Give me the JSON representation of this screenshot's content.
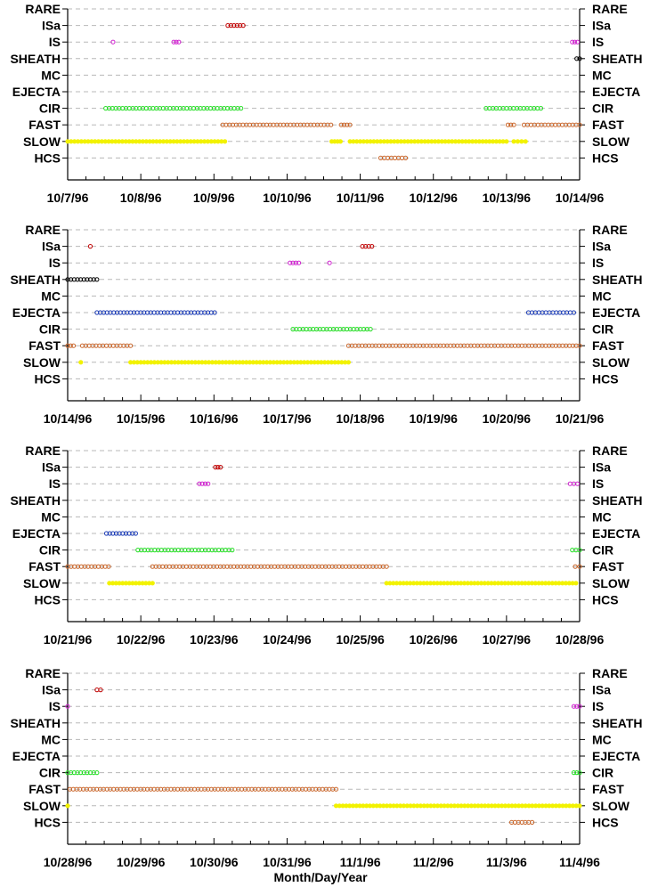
{
  "chart_data": {
    "type": "scatter",
    "categories": [
      "RARE",
      "ISa",
      "IS",
      "SHEATH",
      "MC",
      "EJECTA",
      "CIR",
      "FAST",
      "SLOW",
      "HCS"
    ],
    "xlabel": "Month/Day/Year",
    "grid": "dashed horizontal lines at each category",
    "series_colors": {
      "RARE": "#000000",
      "ISa": "#c00000",
      "IS": "#d020d0",
      "SHEATH": "#000000",
      "MC": "#000000",
      "EJECTA": "#1f3fb8",
      "CIR": "#22dd22",
      "FAST": "#c86428",
      "SLOW": "#f2f200",
      "HCS": "#c86428"
    },
    "panels": [
      {
        "x_tick_labels": [
          "10/7/96",
          "10/8/96",
          "10/9/96",
          "10/10/96",
          "10/11/96",
          "10/12/96",
          "10/13/96",
          "10/14/96"
        ],
        "xlim_days": [
          0,
          7
        ],
        "intervals": [
          {
            "category": "ISa",
            "start": 2.19,
            "end": 2.4
          },
          {
            "category": "IS",
            "start": 0.62,
            "end": 0.63
          },
          {
            "category": "IS",
            "start": 1.45,
            "end": 1.52
          },
          {
            "category": "IS",
            "start": 6.9,
            "end": 6.97
          },
          {
            "category": "SHEATH",
            "start": 6.96,
            "end": 7.0
          },
          {
            "category": "CIR",
            "start": 0.52,
            "end": 2.37
          },
          {
            "category": "CIR",
            "start": 5.72,
            "end": 6.47
          },
          {
            "category": "FAST",
            "start": 2.12,
            "end": 3.6
          },
          {
            "category": "FAST",
            "start": 3.74,
            "end": 3.86
          },
          {
            "category": "FAST",
            "start": 6.02,
            "end": 6.1
          },
          {
            "category": "FAST",
            "start": 6.24,
            "end": 7.0
          },
          {
            "category": "SLOW",
            "start": 0.0,
            "end": 2.15
          },
          {
            "category": "SLOW",
            "start": 3.61,
            "end": 3.73
          },
          {
            "category": "SLOW",
            "start": 3.86,
            "end": 6.0
          },
          {
            "category": "SLOW",
            "start": 6.1,
            "end": 6.26
          },
          {
            "category": "HCS",
            "start": 4.28,
            "end": 4.62
          }
        ]
      },
      {
        "x_tick_labels": [
          "10/14/96",
          "10/15/96",
          "10/16/96",
          "10/17/96",
          "10/18/96",
          "10/19/96",
          "10/20/96",
          "10/21/96"
        ],
        "xlim_days": [
          0,
          7
        ],
        "intervals": [
          {
            "category": "ISa",
            "start": 0.31,
            "end": 0.33
          },
          {
            "category": "ISa",
            "start": 4.03,
            "end": 4.16
          },
          {
            "category": "IS",
            "start": 3.04,
            "end": 3.16
          },
          {
            "category": "IS",
            "start": 3.58,
            "end": 3.6
          },
          {
            "category": "SHEATH",
            "start": 0.0,
            "end": 0.4
          },
          {
            "category": "EJECTA",
            "start": 0.4,
            "end": 2.01
          },
          {
            "category": "EJECTA",
            "start": 6.3,
            "end": 6.92
          },
          {
            "category": "CIR",
            "start": 3.08,
            "end": 4.14
          },
          {
            "category": "FAST",
            "start": 0.0,
            "end": 0.08
          },
          {
            "category": "FAST",
            "start": 0.2,
            "end": 0.86
          },
          {
            "category": "FAST",
            "start": 3.84,
            "end": 7.0
          },
          {
            "category": "SLOW",
            "start": 0.18,
            "end": 0.2
          },
          {
            "category": "SLOW",
            "start": 0.86,
            "end": 3.84
          }
        ]
      },
      {
        "x_tick_labels": [
          "10/21/96",
          "10/22/96",
          "10/23/96",
          "10/24/96",
          "10/25/96",
          "10/26/96",
          "10/27/96",
          "10/28/96"
        ],
        "xlim_days": [
          0,
          7
        ],
        "intervals": [
          {
            "category": "ISa",
            "start": 2.02,
            "end": 2.09
          },
          {
            "category": "IS",
            "start": 1.8,
            "end": 1.92
          },
          {
            "category": "IS",
            "start": 6.87,
            "end": 6.97
          },
          {
            "category": "EJECTA",
            "start": 0.53,
            "end": 0.93
          },
          {
            "category": "CIR",
            "start": 0.96,
            "end": 2.25
          },
          {
            "category": "CIR",
            "start": 6.9,
            "end": 7.0
          },
          {
            "category": "FAST",
            "start": 0.0,
            "end": 0.56
          },
          {
            "category": "FAST",
            "start": 1.16,
            "end": 4.36
          },
          {
            "category": "FAST",
            "start": 6.94,
            "end": 7.0
          },
          {
            "category": "SLOW",
            "start": 0.57,
            "end": 1.16
          },
          {
            "category": "SLOW",
            "start": 4.36,
            "end": 6.95
          }
        ]
      },
      {
        "x_tick_labels": [
          "10/28/96",
          "10/29/96",
          "10/30/96",
          "10/31/96",
          "11/1/96",
          "11/2/96",
          "11/3/96",
          "11/4/96"
        ],
        "xlim_days": [
          0,
          7
        ],
        "intervals": [
          {
            "category": "ISa",
            "start": 0.4,
            "end": 0.45
          },
          {
            "category": "IS",
            "start": 0.0,
            "end": 0.01
          },
          {
            "category": "IS",
            "start": 6.92,
            "end": 7.0
          },
          {
            "category": "CIR",
            "start": 0.0,
            "end": 0.4
          },
          {
            "category": "CIR",
            "start": 6.92,
            "end": 7.0
          },
          {
            "category": "FAST",
            "start": 0.03,
            "end": 3.67
          },
          {
            "category": "SLOW",
            "start": 0.0,
            "end": 0.02
          },
          {
            "category": "SLOW",
            "start": 3.67,
            "end": 7.0
          },
          {
            "category": "HCS",
            "start": 6.07,
            "end": 6.35
          }
        ]
      }
    ]
  }
}
